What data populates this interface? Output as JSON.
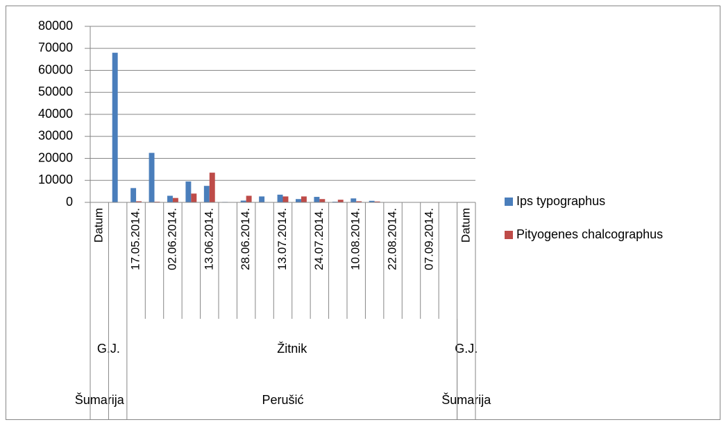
{
  "chart_data": {
    "type": "bar",
    "categories": [
      "Datum",
      null,
      "17.05.2014.",
      null,
      "02.06.2014.",
      null,
      "13.06.2014.",
      null,
      "28.06.2014.",
      null,
      "13.07.2014.",
      null,
      "24.07.2014.",
      null,
      "10.08.2014.",
      null,
      "22.08.2014.",
      null,
      "07.09.2014.",
      null,
      "Datum"
    ],
    "category_levels": [
      [
        "G.J.",
        null,
        "Žitnik",
        null,
        null,
        null,
        null,
        null,
        null,
        null,
        null,
        null,
        null,
        null,
        null,
        null,
        null,
        null,
        null,
        null,
        "G.J."
      ],
      [
        "Šumarija",
        "Perušić",
        null,
        null,
        null,
        null,
        null,
        null,
        null,
        null,
        null,
        null,
        null,
        null,
        null,
        null,
        null,
        null,
        null,
        null,
        "Šumarija"
      ]
    ],
    "series": [
      {
        "name": "Ips typographus",
        "color": "#4a7ebb",
        "values": [
          null,
          68000,
          6500,
          22500,
          3000,
          9500,
          7500,
          200,
          800,
          2700,
          3500,
          1500,
          2500,
          300,
          1800,
          700,
          0,
          0,
          0,
          0,
          null
        ]
      },
      {
        "name": "Pityogenes chalcographus",
        "color": "#be4b48",
        "values": [
          null,
          0,
          500,
          300,
          2000,
          4000,
          13500,
          100,
          3000,
          0,
          2700,
          2700,
          1500,
          1200,
          500,
          400,
          0,
          0,
          0,
          0,
          null
        ]
      }
    ],
    "ylim": [
      0,
      80000
    ],
    "yticks": [
      0,
      10000,
      20000,
      30000,
      40000,
      50000,
      60000,
      70000,
      80000
    ],
    "grid": true,
    "legend": "right"
  }
}
